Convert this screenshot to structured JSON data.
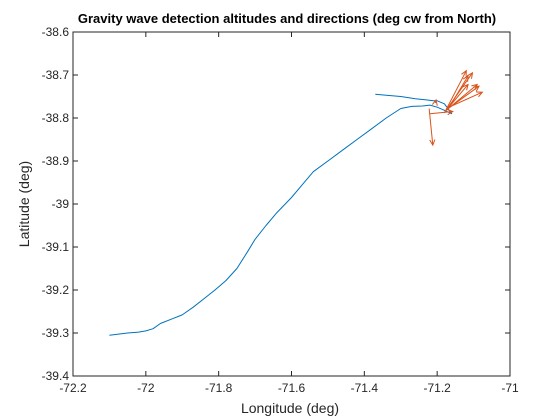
{
  "chart_data": {
    "type": "line",
    "title": "Gravity wave detection altitudes and directions (deg cw from North)",
    "xlabel": "Longitude (deg)",
    "ylabel": "Latitude (deg)",
    "xlim": [
      -72.2,
      -71
    ],
    "ylim": [
      -39.4,
      -38.6
    ],
    "xticks": [
      -72.2,
      -72,
      -71.8,
      -71.6,
      -71.4,
      -71.2,
      -71
    ],
    "xtick_labels": [
      "-72.2",
      "-72",
      "-71.8",
      "-71.6",
      "-71.4",
      "-71.2",
      "-71"
    ],
    "yticks": [
      -38.6,
      -38.7,
      -38.8,
      -38.9,
      -39,
      -39.1,
      -39.2,
      -39.3,
      -39.4
    ],
    "ytick_labels": [
      "-38.6",
      "-38.7",
      "-38.8",
      "-38.9",
      "-39",
      "-39.1",
      "-39.2",
      "-39.3",
      "-39.4"
    ],
    "grid": false,
    "colors": {
      "track": "#0072BD",
      "arrows": "#D95319",
      "axes": "#262626"
    },
    "track": {
      "x": [
        -72.1,
        -72.05,
        -72.02,
        -72.0,
        -71.98,
        -71.96,
        -71.93,
        -71.9,
        -71.87,
        -71.84,
        -71.81,
        -71.78,
        -71.75,
        -71.72,
        -71.7,
        -71.67,
        -71.64,
        -71.6,
        -71.57,
        -71.54,
        -71.5,
        -71.46,
        -71.42,
        -71.38,
        -71.34,
        -71.3,
        -71.27,
        -71.24,
        -71.22,
        -71.2,
        -71.18,
        -71.16,
        -71.18,
        -71.2,
        -71.21,
        -71.23,
        -71.26,
        -71.3,
        -71.34,
        -71.37
      ],
      "y": [
        -39.305,
        -39.3,
        -39.298,
        -39.295,
        -39.29,
        -39.278,
        -39.268,
        -39.258,
        -39.24,
        -39.22,
        -39.2,
        -39.178,
        -39.15,
        -39.11,
        -39.082,
        -39.05,
        -39.02,
        -38.985,
        -38.955,
        -38.925,
        -38.9,
        -38.875,
        -38.85,
        -38.825,
        -38.8,
        -38.778,
        -38.773,
        -38.772,
        -38.77,
        -38.775,
        -38.782,
        -38.79,
        -38.767,
        -38.76,
        -38.76,
        -38.758,
        -38.755,
        -38.75,
        -38.747,
        -38.745
      ]
    },
    "arrows": [
      {
        "x": -71.222,
        "y": -38.778,
        "dx": 0.01,
        "dy": -0.085
      },
      {
        "x": -71.22,
        "y": -38.79,
        "dx": 0.063,
        "dy": 0.005
      },
      {
        "x": -71.205,
        "y": -38.765,
        "dx": 0.002,
        "dy": 0.007
      },
      {
        "x": -71.18,
        "y": -38.788,
        "dx": 0.06,
        "dy": 0.098
      },
      {
        "x": -71.178,
        "y": -38.785,
        "dx": 0.075,
        "dy": 0.09
      },
      {
        "x": -71.175,
        "y": -38.782,
        "dx": 0.06,
        "dy": 0.06
      },
      {
        "x": -71.172,
        "y": -38.78,
        "dx": 0.082,
        "dy": 0.058
      },
      {
        "x": -71.17,
        "y": -38.778,
        "dx": 0.085,
        "dy": 0.052
      },
      {
        "x": -71.168,
        "y": -38.775,
        "dx": 0.092,
        "dy": 0.035
      },
      {
        "x": -71.165,
        "y": -38.772,
        "dx": 0.05,
        "dy": 0.07
      }
    ]
  }
}
